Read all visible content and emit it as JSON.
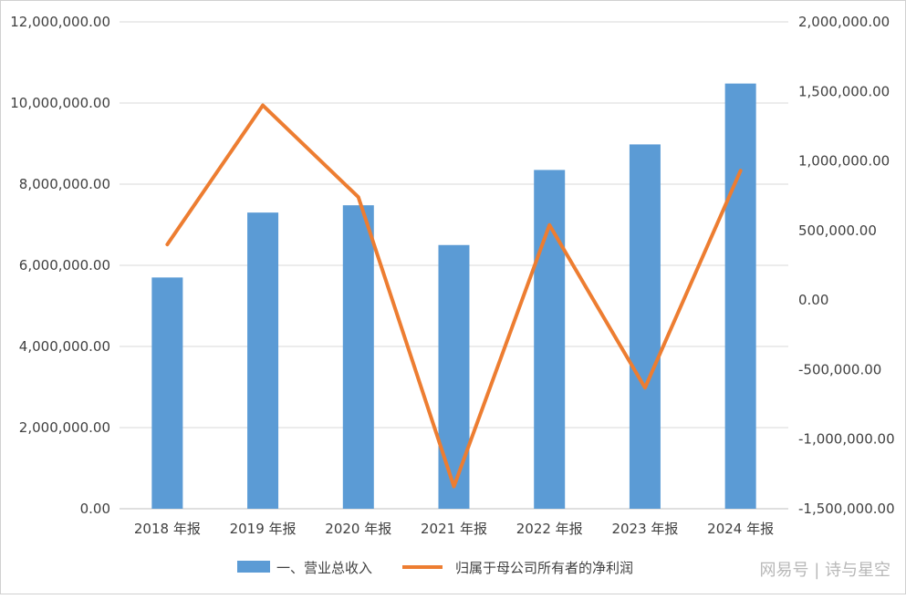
{
  "chart_data": {
    "type": "bar",
    "categories": [
      "2018 年报",
      "2019 年报",
      "2020 年报",
      "2021 年报",
      "2022 年报",
      "2023 年报",
      "2024 年报"
    ],
    "series": [
      {
        "name": "一、营业总收入",
        "type": "bar",
        "axis": "left",
        "color": "#5b9bd5",
        "values": [
          5700000,
          7300000,
          7480000,
          6500000,
          8350000,
          8980000,
          10480000
        ]
      },
      {
        "name": "归属于母公司所有者的净利润",
        "type": "line",
        "axis": "right",
        "color": "#ed7d31",
        "values": [
          400000,
          1400000,
          740000,
          -1340000,
          540000,
          -630000,
          930000
        ]
      }
    ],
    "y_left": {
      "min": 0,
      "max": 12000000,
      "ticks": [
        "0.00",
        "2,000,000.00",
        "4,000,000.00",
        "6,000,000.00",
        "8,000,000.00",
        "10,000,000.00",
        "12,000,000.00"
      ]
    },
    "y_right": {
      "min": -1500000,
      "max": 2000000,
      "ticks": [
        "-1,500,000.00",
        "-1,000,000.00",
        "-500,000.00",
        "0.00",
        "500,000.00",
        "1,000,000.00",
        "1,500,000.00",
        "2,000,000.00"
      ]
    },
    "grid": true,
    "legend_position": "bottom"
  },
  "watermark": "网易号 | 诗与星空"
}
